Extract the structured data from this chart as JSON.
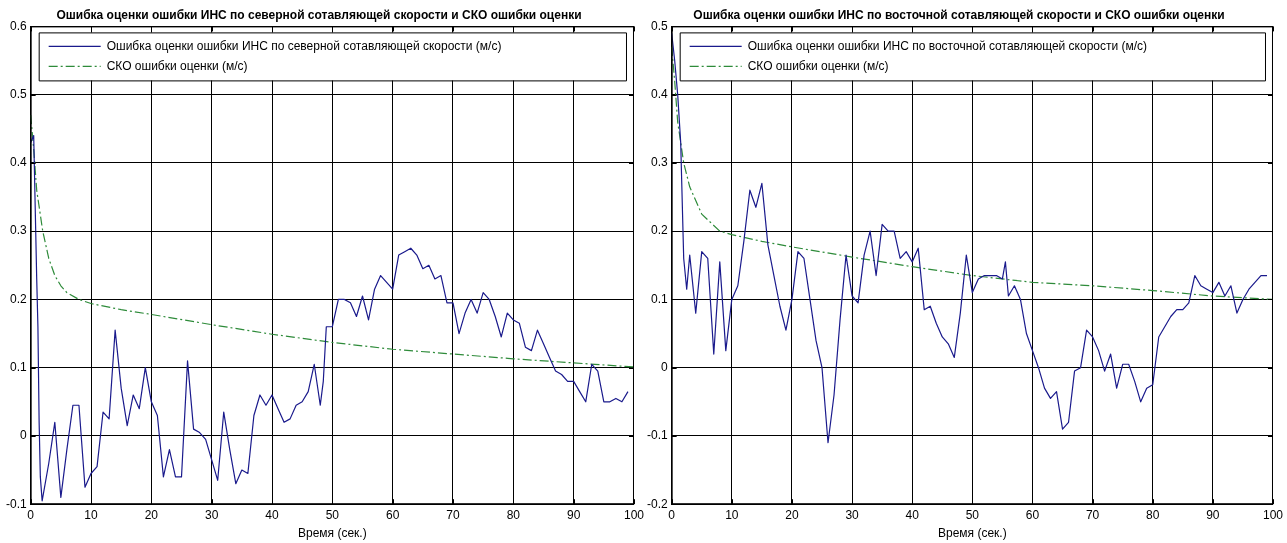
{
  "chart_data": [
    {
      "type": "line",
      "title": "Ошибка оценки ошибки ИНС по северной сотавляющей скорости и СКО ошибки оценки",
      "xlabel": "Время (сек.)",
      "xlim": [
        0,
        100
      ],
      "xticks": [
        0,
        10,
        20,
        30,
        40,
        50,
        60,
        70,
        80,
        90,
        100
      ],
      "ylim": [
        -0.1,
        0.6
      ],
      "yticks": [
        -0.1,
        0,
        0.1,
        0.2,
        0.3,
        0.4,
        0.5,
        0.6
      ],
      "grid": true,
      "legend": "top",
      "series": [
        {
          "name": "Ошибка оценки ошибки ИНС по северной сотавляющей скорости (м/с)",
          "color": "#1a1a8c",
          "line_style": "solid",
          "x": [
            0,
            0.5,
            1,
            1.2,
            1.4,
            1.6,
            1.9,
            3,
            4,
            5,
            6,
            7,
            8,
            9,
            10,
            11,
            12,
            13,
            14,
            15,
            16,
            17,
            18,
            19,
            20,
            21,
            22,
            23,
            24,
            25,
            26,
            27,
            28,
            29,
            30,
            31,
            32,
            33,
            34,
            35,
            36,
            37,
            38,
            39,
            40,
            41,
            42,
            43,
            44,
            45,
            46,
            47,
            48,
            48.5,
            49,
            50,
            51,
            52,
            53,
            54,
            55,
            56,
            57,
            58,
            59,
            60,
            61,
            62,
            63,
            64,
            65,
            66,
            67,
            68,
            69,
            70,
            71,
            72,
            73,
            74,
            75,
            76,
            77,
            78,
            79,
            80,
            81,
            82,
            83,
            84,
            85,
            86,
            87,
            88,
            89,
            90,
            91,
            92,
            93,
            94,
            95,
            96,
            97,
            98,
            99
          ],
          "values": [
            0.43,
            0.44,
            0.23,
            0.16,
            0.02,
            -0.06,
            -0.095,
            -0.04,
            0.02,
            -0.09,
            -0.02,
            0.045,
            0.045,
            -0.075,
            -0.055,
            -0.045,
            0.035,
            0.025,
            0.155,
            0.07,
            0.015,
            0.06,
            0.04,
            0.1,
            0.05,
            0.03,
            -0.06,
            -0.02,
            -0.06,
            -0.06,
            0.11,
            0.01,
            0.005,
            -0.005,
            -0.035,
            -0.065,
            0.035,
            -0.02,
            -0.07,
            -0.05,
            -0.055,
            0.03,
            0.06,
            0.045,
            0.06,
            0.04,
            0.02,
            0.025,
            0.045,
            0.05,
            0.065,
            0.105,
            0.045,
            0.08,
            0.16,
            0.16,
            0.2,
            0.2,
            0.195,
            0.175,
            0.205,
            0.17,
            0.215,
            0.235,
            0.225,
            0.215,
            0.265,
            0.27,
            0.275,
            0.265,
            0.245,
            0.25,
            0.23,
            0.235,
            0.195,
            0.195,
            0.15,
            0.18,
            0.2,
            0.18,
            0.21,
            0.2,
            0.175,
            0.145,
            0.18,
            0.17,
            0.165,
            0.13,
            0.125,
            0.155,
            0.135,
            0.115,
            0.095,
            0.09,
            0.08,
            0.08,
            0.065,
            0.05,
            0.105,
            0.095,
            0.05,
            0.05,
            0.055,
            0.05,
            0.065
          ]
        },
        {
          "name": "СКО ошибки оценки (м/с)",
          "color": "#2e8b3a",
          "line_style": "dashed",
          "x": [
            0,
            0.5,
            1,
            2,
            3,
            4,
            5,
            6,
            8,
            10,
            15,
            20,
            30,
            40,
            50,
            60,
            70,
            80,
            90,
            100
          ],
          "values": [
            0.47,
            0.42,
            0.36,
            0.3,
            0.26,
            0.235,
            0.22,
            0.21,
            0.2,
            0.194,
            0.185,
            0.178,
            0.163,
            0.149,
            0.137,
            0.127,
            0.12,
            0.113,
            0.107,
            0.101
          ]
        }
      ]
    },
    {
      "type": "line",
      "title": "Ошибка оценки ошибки ИНС по восточной сотавляющей скорости и СКО ошибки оценки",
      "xlabel": "Время (сек.)",
      "xlim": [
        0,
        100
      ],
      "xticks": [
        0,
        10,
        20,
        30,
        40,
        50,
        60,
        70,
        80,
        90,
        100
      ],
      "ylim": [
        -0.2,
        0.5
      ],
      "yticks": [
        -0.2,
        -0.1,
        0,
        0.1,
        0.2,
        0.3,
        0.4,
        0.5
      ],
      "grid": true,
      "legend": "top",
      "series": [
        {
          "name": "Ошибка оценки ошибки ИНС по восточной сотавляющей скорости (м/с)",
          "color": "#1a1a8c",
          "line_style": "solid",
          "x": [
            0,
            0.5,
            1,
            1.5,
            2,
            2.5,
            3,
            4,
            5,
            6,
            7,
            8,
            9,
            10,
            11,
            12,
            13,
            14,
            15,
            16,
            17,
            18,
            19,
            20,
            21,
            22,
            23,
            24,
            25,
            26,
            27,
            28,
            29,
            30,
            31,
            32,
            33,
            34,
            35,
            36,
            37,
            38,
            39,
            40,
            41,
            42,
            43,
            44,
            45,
            46,
            47,
            48,
            49,
            50,
            51,
            52,
            53,
            54,
            55,
            55.5,
            56,
            57,
            58,
            59,
            60,
            61,
            62,
            63,
            64,
            65,
            66,
            67,
            68,
            69,
            70,
            71,
            72,
            73,
            74,
            75,
            76,
            77,
            78,
            79,
            80,
            81,
            82,
            83,
            84,
            85,
            86,
            87,
            88,
            89,
            90,
            91,
            92,
            93,
            94,
            95,
            96,
            97,
            98,
            99
          ],
          "values": [
            0.49,
            0.45,
            0.4,
            0.33,
            0.16,
            0.115,
            0.165,
            0.08,
            0.17,
            0.16,
            0.02,
            0.155,
            0.025,
            0.1,
            0.12,
            0.185,
            0.26,
            0.235,
            0.27,
            0.18,
            0.135,
            0.09,
            0.055,
            0.1,
            0.17,
            0.16,
            0.1,
            0.04,
            0,
            -0.11,
            -0.04,
            0.07,
            0.165,
            0.105,
            0.095,
            0.165,
            0.2,
            0.135,
            0.21,
            0.2,
            0.2,
            0.16,
            0.17,
            0.155,
            0.175,
            0.085,
            0.09,
            0.065,
            0.045,
            0.035,
            0.015,
            0.08,
            0.165,
            0.11,
            0.13,
            0.135,
            0.135,
            0.135,
            0.13,
            0.155,
            0.105,
            0.12,
            0.1,
            0.05,
            0.025,
            0,
            -0.03,
            -0.045,
            -0.035,
            -0.09,
            -0.08,
            -0.005,
            0,
            0.055,
            0.045,
            0.025,
            -0.005,
            0.02,
            -0.03,
            0.005,
            0.005,
            -0.02,
            -0.05,
            -0.03,
            -0.025,
            0.045,
            0.06,
            0.075,
            0.085,
            0.085,
            0.095,
            0.135,
            0.12,
            0.115,
            0.11,
            0.125,
            0.105,
            0.12,
            0.08,
            0.1,
            0.115,
            0.125,
            0.135,
            0.135
          ]
        },
        {
          "name": "СКО ошибки оценки (м/с)",
          "color": "#2e8b3a",
          "line_style": "dashed",
          "x": [
            0,
            0.5,
            1,
            2,
            3,
            5,
            8,
            10,
            15,
            20,
            30,
            40,
            50,
            60,
            70,
            80,
            90,
            100
          ],
          "values": [
            0.47,
            0.42,
            0.36,
            0.3,
            0.265,
            0.225,
            0.2,
            0.195,
            0.185,
            0.177,
            0.162,
            0.148,
            0.135,
            0.125,
            0.12,
            0.113,
            0.105,
            0.1
          ]
        }
      ]
    }
  ]
}
